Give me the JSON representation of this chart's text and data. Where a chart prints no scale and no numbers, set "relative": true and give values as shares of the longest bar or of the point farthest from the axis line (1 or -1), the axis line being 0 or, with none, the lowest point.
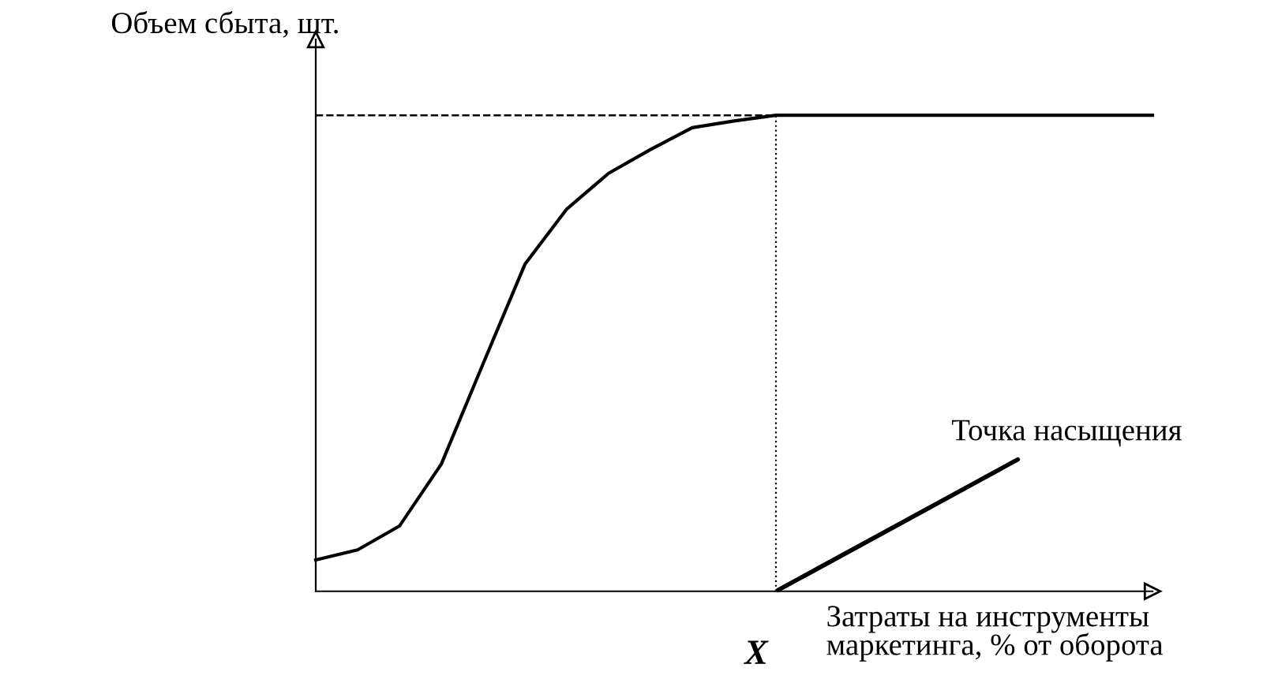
{
  "chart_data": {
    "type": "line",
    "relative": true,
    "ylabel": "Объем сбыта, шт.",
    "xlabel": "Затраты на инструменты\nмаркетинга, % от оборота",
    "categories": [
      null,
      null,
      null,
      null,
      null,
      null,
      null,
      null,
      null,
      null,
      null,
      null,
      null,
      null,
      null,
      null,
      null,
      null,
      null,
      null,
      null
    ],
    "series": [
      {
        "color": "#000000",
        "values": [
          0.066,
          0.087,
          0.137,
          0.267,
          0.478,
          0.687,
          0.803,
          0.878,
          0.928,
          0.974,
          0.988,
          1,
          1,
          1,
          1,
          1,
          1,
          1,
          1,
          1,
          1
        ]
      }
    ],
    "ref_lines": [
      {
        "axis": "y",
        "value": 1,
        "line_style": "dashed",
        "color": "#000000"
      }
    ],
    "annotations": [
      "X",
      "Точка насыщения"
    ],
    "marker": "none",
    "line_style": "solid"
  }
}
